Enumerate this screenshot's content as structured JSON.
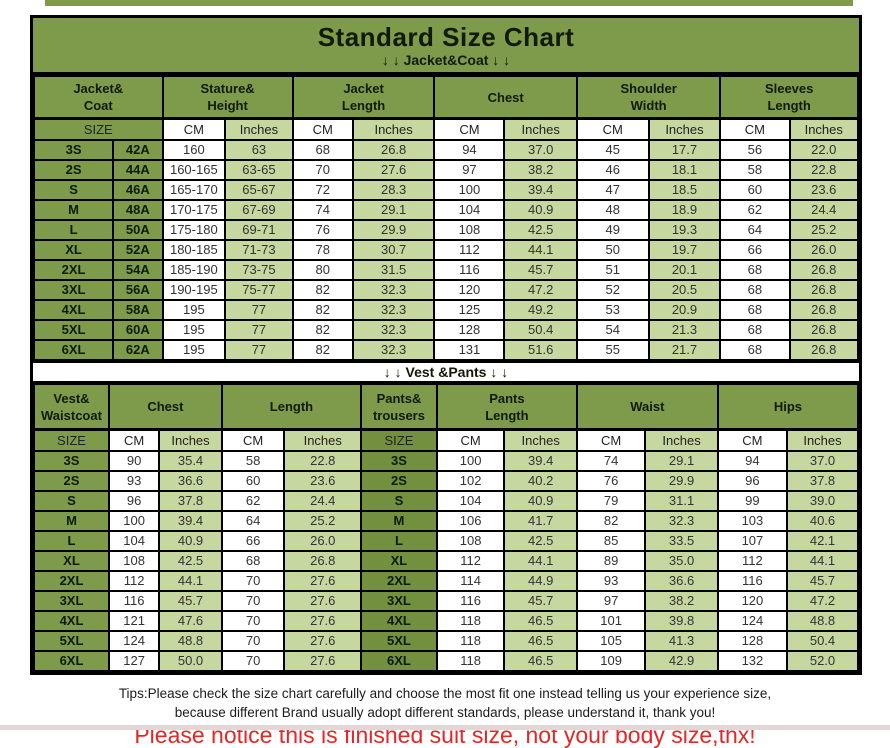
{
  "title": "Standard Size Chart",
  "jacket_section_label": "↓ ↓  Jacket&Coat ↓ ↓",
  "vest_section_label": "↓ ↓  Vest &Pants ↓ ↓",
  "colors": {
    "header_green": "#7d9b4b",
    "dark_green": "#72903d",
    "light_green": "#c6d79f",
    "notice_red": "#e62525",
    "border_black": "#000000"
  },
  "jacket_table": {
    "groups": [
      {
        "label": "Jacket&\nCoat"
      },
      {
        "label": "Stature&\nHeight"
      },
      {
        "label": "Jacket\nLength"
      },
      {
        "label": "Chest"
      },
      {
        "label": "Shoulder\nWidth"
      },
      {
        "label": "Sleeves\nLength"
      }
    ],
    "subheader": [
      "SIZE",
      "CM",
      "Inches",
      "CM",
      "Inches",
      "CM",
      "Inches",
      "CM",
      "Inches",
      "CM",
      "Inches"
    ],
    "rows": [
      [
        "3S",
        "42A",
        "160",
        "63",
        "68",
        "26.8",
        "94",
        "37.0",
        "45",
        "17.7",
        "56",
        "22.0"
      ],
      [
        "2S",
        "44A",
        "160-165",
        "63-65",
        "70",
        "27.6",
        "97",
        "38.2",
        "46",
        "18.1",
        "58",
        "22.8"
      ],
      [
        "S",
        "46A",
        "165-170",
        "65-67",
        "72",
        "28.3",
        "100",
        "39.4",
        "47",
        "18.5",
        "60",
        "23.6"
      ],
      [
        "M",
        "48A",
        "170-175",
        "67-69",
        "74",
        "29.1",
        "104",
        "40.9",
        "48",
        "18.9",
        "62",
        "24.4"
      ],
      [
        "L",
        "50A",
        "175-180",
        "69-71",
        "76",
        "29.9",
        "108",
        "42.5",
        "49",
        "19.3",
        "64",
        "25.2"
      ],
      [
        "XL",
        "52A",
        "180-185",
        "71-73",
        "78",
        "30.7",
        "112",
        "44.1",
        "50",
        "19.7",
        "66",
        "26.0"
      ],
      [
        "2XL",
        "54A",
        "185-190",
        "73-75",
        "80",
        "31.5",
        "116",
        "45.7",
        "51",
        "20.1",
        "68",
        "26.8"
      ],
      [
        "3XL",
        "56A",
        "190-195",
        "75-77",
        "82",
        "32.3",
        "120",
        "47.2",
        "52",
        "20.5",
        "68",
        "26.8"
      ],
      [
        "4XL",
        "58A",
        "195",
        "77",
        "82",
        "32.3",
        "125",
        "49.2",
        "53",
        "20.9",
        "68",
        "26.8"
      ],
      [
        "5XL",
        "60A",
        "195",
        "77",
        "82",
        "32.3",
        "128",
        "50.4",
        "54",
        "21.3",
        "68",
        "26.8"
      ],
      [
        "6XL",
        "62A",
        "195",
        "77",
        "82",
        "32.3",
        "131",
        "51.6",
        "55",
        "21.7",
        "68",
        "26.8"
      ]
    ]
  },
  "vest_table": {
    "groups": [
      {
        "label": "Vest&\nWaistcoat"
      },
      {
        "label": "Chest"
      },
      {
        "label": "Length"
      },
      {
        "label": "Pants&\ntrousers"
      },
      {
        "label": "Pants\nLength"
      },
      {
        "label": "Waist"
      },
      {
        "label": "Hips"
      }
    ],
    "subheader": [
      "SIZE",
      "CM",
      "Inches",
      "CM",
      "Inches",
      "SIZE",
      "CM",
      "Inches",
      "CM",
      "Inches",
      "CM",
      "Inches"
    ],
    "rows": [
      [
        "3S",
        "90",
        "35.4",
        "58",
        "22.8",
        "3S",
        "100",
        "39.4",
        "74",
        "29.1",
        "94",
        "37.0"
      ],
      [
        "2S",
        "93",
        "36.6",
        "60",
        "23.6",
        "2S",
        "102",
        "40.2",
        "76",
        "29.9",
        "96",
        "37.8"
      ],
      [
        "S",
        "96",
        "37.8",
        "62",
        "24.4",
        "S",
        "104",
        "40.9",
        "79",
        "31.1",
        "99",
        "39.0"
      ],
      [
        "M",
        "100",
        "39.4",
        "64",
        "25.2",
        "M",
        "106",
        "41.7",
        "82",
        "32.3",
        "103",
        "40.6"
      ],
      [
        "L",
        "104",
        "40.9",
        "66",
        "26.0",
        "L",
        "108",
        "42.5",
        "85",
        "33.5",
        "107",
        "42.1"
      ],
      [
        "XL",
        "108",
        "42.5",
        "68",
        "26.8",
        "XL",
        "112",
        "44.1",
        "89",
        "35.0",
        "112",
        "44.1"
      ],
      [
        "2XL",
        "112",
        "44.1",
        "70",
        "27.6",
        "2XL",
        "114",
        "44.9",
        "93",
        "36.6",
        "116",
        "45.7"
      ],
      [
        "3XL",
        "116",
        "45.7",
        "70",
        "27.6",
        "3XL",
        "116",
        "45.7",
        "97",
        "38.2",
        "120",
        "47.2"
      ],
      [
        "4XL",
        "121",
        "47.6",
        "70",
        "27.6",
        "4XL",
        "118",
        "46.5",
        "101",
        "39.8",
        "124",
        "48.8"
      ],
      [
        "5XL",
        "124",
        "48.8",
        "70",
        "27.6",
        "5XL",
        "118",
        "46.5",
        "105",
        "41.3",
        "128",
        "50.4"
      ],
      [
        "6XL",
        "127",
        "50.0",
        "70",
        "27.6",
        "6XL",
        "118",
        "46.5",
        "109",
        "42.9",
        "132",
        "52.0"
      ]
    ]
  },
  "tips_line1": "Tips:Please check the size chart carefully and choose the most fit one instead telling us your experience size,",
  "tips_line2": "because different Brand usually adopt different standards, please understand it, thank you!",
  "notice": "Please notice this is finished suit size, not your body size,thx!"
}
